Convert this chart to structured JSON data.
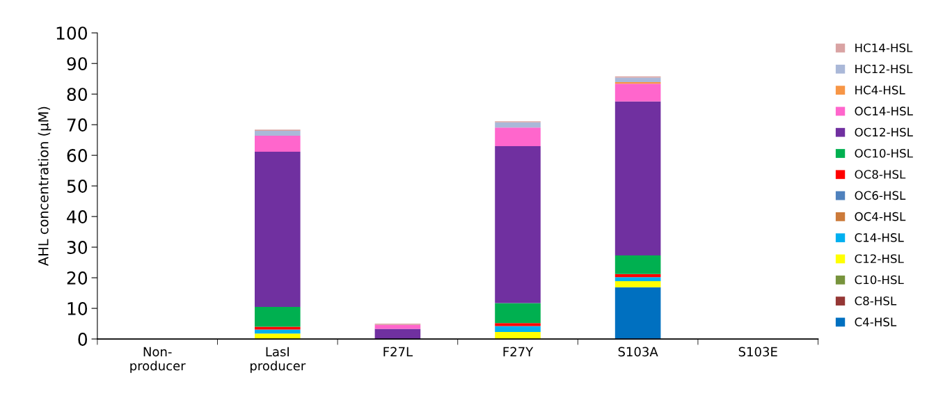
{
  "chart_data": {
    "type": "bar",
    "stacked": true,
    "ylabel": "AHL concentration (µM)",
    "categories": [
      "Non-\nproducer",
      "LasI\nproducer",
      "F27L",
      "F27Y",
      "S103A",
      "S103E"
    ],
    "ylim": [
      0,
      100
    ],
    "yticks": [
      0,
      10,
      20,
      30,
      40,
      50,
      60,
      70,
      80,
      90,
      100
    ],
    "grid": false,
    "legend": "right",
    "series": [
      {
        "name": "C4-HSL",
        "color": "#0070c0",
        "values": [
          0,
          0,
          0,
          0,
          16.9,
          0
        ]
      },
      {
        "name": "C8-HSL",
        "color": "#953735",
        "values": [
          0,
          0,
          0,
          0,
          0,
          0
        ]
      },
      {
        "name": "C10-HSL",
        "color": "#77933c",
        "values": [
          0,
          0,
          0,
          0,
          0,
          0
        ]
      },
      {
        "name": "C12-HSL",
        "color": "#ffff00",
        "values": [
          0,
          1.8,
          0,
          2.3,
          2.0,
          0
        ]
      },
      {
        "name": "C14-HSL",
        "color": "#00b0f0",
        "values": [
          0,
          1.3,
          0,
          1.9,
          1.3,
          0
        ]
      },
      {
        "name": "OC4-HSL",
        "color": "#cc7a3a",
        "values": [
          0,
          0,
          0,
          0,
          0,
          0
        ]
      },
      {
        "name": "OC6-HSL",
        "color": "#4f81bd",
        "values": [
          0,
          0,
          0,
          0,
          0,
          0
        ]
      },
      {
        "name": "OC8-HSL",
        "color": "#ff0000",
        "values": [
          0,
          0.9,
          0,
          1.0,
          1.0,
          0
        ]
      },
      {
        "name": "OC10-HSL",
        "color": "#00b050",
        "values": [
          0,
          6.5,
          0,
          6.5,
          6.1,
          0
        ]
      },
      {
        "name": "OC12-HSL",
        "color": "#7030a0",
        "values": [
          0,
          50.7,
          3.3,
          51.3,
          50.3,
          0
        ]
      },
      {
        "name": "OC14-HSL",
        "color": "#ff66cc",
        "values": [
          0,
          5.2,
          1.3,
          6.1,
          5.8,
          0
        ]
      },
      {
        "name": "HC4-HSL",
        "color": "#f79646",
        "values": [
          0,
          0,
          0,
          0,
          0.5,
          0
        ]
      },
      {
        "name": "HC12-HSL",
        "color": "#aab8d8",
        "values": [
          0,
          1.6,
          0,
          1.7,
          1.5,
          0
        ]
      },
      {
        "name": "HC14-HSL",
        "color": "#d9a3a3",
        "values": [
          0,
          0.4,
          0.4,
          0.3,
          0.4,
          0
        ]
      }
    ]
  }
}
